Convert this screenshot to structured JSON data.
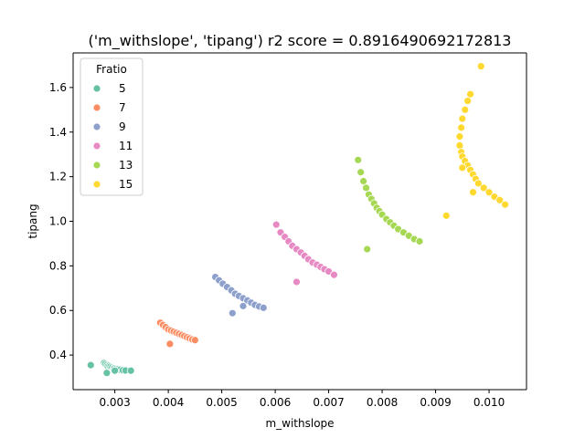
{
  "chart_data": {
    "type": "scatter",
    "title": "('m_withslope', 'tipang') r2 score = 0.8916490692172813",
    "xlabel": "m_withslope",
    "ylabel": "tipang",
    "xlim": [
      0.00222,
      0.0107
    ],
    "ylim": [
      0.245,
      1.755
    ],
    "xticks": [
      0.003,
      0.004,
      0.005,
      0.006,
      0.007,
      0.008,
      0.009,
      0.01
    ],
    "xtick_labels": [
      "0.003",
      "0.004",
      "0.005",
      "0.006",
      "0.007",
      "0.008",
      "0.009",
      "0.010"
    ],
    "yticks": [
      0.4,
      0.6,
      0.8,
      1.0,
      1.2,
      1.4,
      1.6
    ],
    "ytick_labels": [
      "0.4",
      "0.6",
      "0.8",
      "1.0",
      "1.2",
      "1.4",
      "1.6"
    ],
    "legend": {
      "title": "Fratio",
      "position": "upper-left",
      "entries": [
        "5",
        "7",
        "9",
        "11",
        "13",
        "15"
      ]
    },
    "series": [
      {
        "name": "5",
        "color": "#66c2a5",
        "x": [
          0.00255,
          0.0028,
          0.00282,
          0.00285,
          0.00287,
          0.0029,
          0.00292,
          0.00295,
          0.00298,
          0.003,
          0.00303,
          0.00306,
          0.0031,
          0.00315,
          0.0032,
          0.0033,
          0.00285,
          0.003
        ],
        "y": [
          0.355,
          0.365,
          0.36,
          0.355,
          0.35,
          0.352,
          0.348,
          0.345,
          0.342,
          0.34,
          0.338,
          0.336,
          0.334,
          0.332,
          0.331,
          0.33,
          0.32,
          0.33
        ]
      },
      {
        "name": "7",
        "color": "#fc8d62",
        "x": [
          0.00385,
          0.0039,
          0.00395,
          0.004,
          0.00405,
          0.0041,
          0.00415,
          0.0042,
          0.00425,
          0.0043,
          0.00435,
          0.0044,
          0.00445,
          0.0045,
          0.00403
        ],
        "y": [
          0.545,
          0.535,
          0.525,
          0.515,
          0.51,
          0.505,
          0.5,
          0.495,
          0.49,
          0.485,
          0.48,
          0.475,
          0.47,
          0.467,
          0.45
        ]
      },
      {
        "name": "9",
        "color": "#8da0cb",
        "x": [
          0.00488,
          0.00495,
          0.00502,
          0.0051,
          0.00518,
          0.00525,
          0.00532,
          0.0054,
          0.00548,
          0.00555,
          0.00562,
          0.0057,
          0.00578,
          0.0052,
          0.0054
        ],
        "y": [
          0.75,
          0.735,
          0.72,
          0.705,
          0.69,
          0.675,
          0.665,
          0.655,
          0.645,
          0.635,
          0.625,
          0.618,
          0.612,
          0.588,
          0.62
        ]
      },
      {
        "name": "11",
        "color": "#e78ac3",
        "x": [
          0.00602,
          0.0061,
          0.00618,
          0.00625,
          0.00632,
          0.0064,
          0.00648,
          0.00655,
          0.00662,
          0.0067,
          0.00678,
          0.00685,
          0.00692,
          0.007,
          0.0071,
          0.0064
        ],
        "y": [
          0.985,
          0.95,
          0.93,
          0.91,
          0.89,
          0.875,
          0.86,
          0.845,
          0.83,
          0.815,
          0.805,
          0.795,
          0.785,
          0.775,
          0.76,
          0.728
        ]
      },
      {
        "name": "13",
        "color": "#a6d854",
        "x": [
          0.00755,
          0.0076,
          0.00765,
          0.0077,
          0.00775,
          0.0078,
          0.00785,
          0.0079,
          0.00795,
          0.008,
          0.00808,
          0.00815,
          0.00822,
          0.0083,
          0.0084,
          0.0085,
          0.0086,
          0.0087,
          0.00772
        ],
        "y": [
          1.275,
          1.22,
          1.18,
          1.15,
          1.12,
          1.1,
          1.08,
          1.06,
          1.045,
          1.03,
          1.01,
          0.995,
          0.98,
          0.965,
          0.95,
          0.935,
          0.92,
          0.91,
          0.875
        ]
      },
      {
        "name": "15",
        "color": "#ffd92f",
        "x": [
          0.00985,
          0.0092,
          0.00965,
          0.0096,
          0.00955,
          0.0095,
          0.00948,
          0.00945,
          0.00945,
          0.00948,
          0.0095,
          0.00955,
          0.0096,
          0.00965,
          0.0097,
          0.00975,
          0.0098,
          0.0099,
          0.01,
          0.0101,
          0.0102,
          0.0103,
          0.0095,
          0.0097
        ],
        "y": [
          1.695,
          1.025,
          1.57,
          1.54,
          1.5,
          1.46,
          1.42,
          1.38,
          1.34,
          1.31,
          1.29,
          1.27,
          1.25,
          1.23,
          1.21,
          1.19,
          1.17,
          1.15,
          1.13,
          1.11,
          1.095,
          1.075,
          1.24,
          1.13
        ]
      }
    ]
  }
}
